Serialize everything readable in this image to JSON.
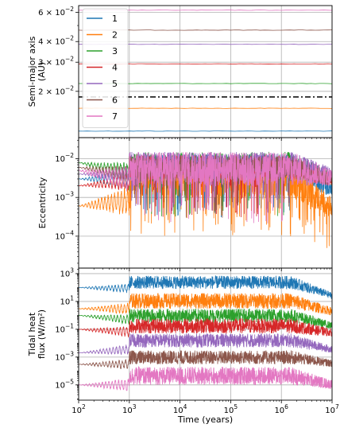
{
  "chart_data": {
    "type": "line",
    "title": "",
    "shared_x": {
      "label": "Time (years)",
      "scale": "log",
      "lim": [
        100,
        10000000
      ],
      "ticks": [
        100,
        1000,
        10000,
        100000,
        1000000,
        10000000
      ],
      "tick_labels": [
        {
          "base": "10",
          "exp": "2"
        },
        {
          "base": "10",
          "exp": "3"
        },
        {
          "base": "10",
          "exp": "4"
        },
        {
          "base": "10",
          "exp": "5"
        },
        {
          "base": "10",
          "exp": "6"
        },
        {
          "base": "10",
          "exp": "7"
        }
      ]
    },
    "grid": true,
    "legend": {
      "placement": "upper-left",
      "entries": [
        "1",
        "2",
        "3",
        "4",
        "5",
        "6",
        "7"
      ]
    },
    "colors": [
      "#1f77b4",
      "#ff7f0e",
      "#2ca02c",
      "#d62728",
      "#9467bd",
      "#8c564b",
      "#e377c2"
    ],
    "panels": [
      {
        "id": "semi-major-axis",
        "ylabel_lines": [
          "Semi-major axis",
          "(AU)"
        ],
        "yscale": "log",
        "ylim": [
          0.0105,
          0.066
        ],
        "yticks": [
          0.02,
          0.03,
          0.04,
          0.06
        ],
        "ytick_labels": [
          {
            "mant": "2 × ",
            "base": "10",
            "exp": "−2"
          },
          {
            "mant": "3 × ",
            "base": "10",
            "exp": "−2"
          },
          {
            "mant": "4 × ",
            "base": "10",
            "exp": "−2"
          },
          {
            "mant": "6 × ",
            "base": "10",
            "exp": "−2"
          }
        ],
        "reference_line": {
          "y": 0.0185,
          "style": "dash-dot",
          "color": "#000000"
        },
        "series": [
          {
            "name": "1",
            "value": 0.0115
          },
          {
            "name": "2",
            "value": 0.0158
          },
          {
            "name": "3",
            "value": 0.0223
          },
          {
            "name": "4",
            "value": 0.0293
          },
          {
            "name": "5",
            "value": 0.0385
          },
          {
            "name": "6",
            "value": 0.0469
          },
          {
            "name": "7",
            "value": 0.0619
          }
        ]
      },
      {
        "id": "eccentricity",
        "ylabel_lines": [
          "Eccentricity"
        ],
        "yscale": "log",
        "ylim": [
          1.5e-05,
          0.035
        ],
        "yticks": [
          0.0001,
          0.001,
          0.01
        ],
        "ytick_labels": [
          {
            "mant": "",
            "base": "10",
            "exp": "−4"
          },
          {
            "mant": "",
            "base": "10",
            "exp": "−3"
          },
          {
            "mant": "",
            "base": "10",
            "exp": "−2"
          }
        ],
        "series": [
          {
            "name": "1",
            "start": 0.003,
            "band": [
              0.003,
              0.013
            ],
            "end": 0.001
          },
          {
            "name": "2",
            "start": 0.0006,
            "band": [
              0.001,
              0.01
            ],
            "end": 0.0003
          },
          {
            "name": "3",
            "start": 0.008,
            "band": [
              0.003,
              0.015
            ],
            "end": 0.002
          },
          {
            "name": "4",
            "start": 0.002,
            "band": [
              0.003,
              0.012
            ],
            "end": 0.002
          },
          {
            "name": "5",
            "start": 0.004,
            "band": [
              0.004,
              0.015
            ],
            "end": 0.003
          },
          {
            "name": "6",
            "start": 0.006,
            "band": [
              0.003,
              0.012
            ],
            "end": 0.002
          },
          {
            "name": "7",
            "start": 0.005,
            "band": [
              0.002,
              0.015
            ],
            "end": 0.002
          }
        ]
      },
      {
        "id": "tidal-heat-flux",
        "ylabel_lines": [
          "Tidal heat",
          "flux (W/m²)"
        ],
        "yscale": "log",
        "ylim": [
          8e-07,
          2500
        ],
        "yticks": [
          1e-05,
          0.001,
          0.1,
          10,
          1000
        ],
        "ytick_labels": [
          {
            "mant": "",
            "base": "10",
            "exp": "−5"
          },
          {
            "mant": "",
            "base": "10",
            "exp": "−3"
          },
          {
            "mant": "",
            "base": "10",
            "exp": "−1"
          },
          {
            "mant": "",
            "base": "10",
            "exp": "1"
          },
          {
            "mant": "",
            "base": "10",
            "exp": "3"
          }
        ],
        "series": [
          {
            "name": "1",
            "start": 100,
            "band": [
              80,
              700
            ],
            "end": 15
          },
          {
            "name": "2",
            "start": 3,
            "band": [
              3,
              40
            ],
            "end": 1
          },
          {
            "name": "3",
            "start": 1,
            "band": [
              0.3,
              3
            ],
            "end": 0.1
          },
          {
            "name": "4",
            "start": 0.1,
            "band": [
              0.05,
              0.6
            ],
            "end": 0.03
          },
          {
            "name": "5",
            "start": 0.002,
            "band": [
              0.005,
              0.05
            ],
            "end": 0.002
          },
          {
            "name": "6",
            "start": 0.0003,
            "band": [
              0.0003,
              0.003
            ],
            "end": 0.0002
          },
          {
            "name": "7",
            "start": 1e-05,
            "band": [
              1e-05,
              0.0002
            ],
            "end": 5e-06
          }
        ]
      }
    ]
  }
}
